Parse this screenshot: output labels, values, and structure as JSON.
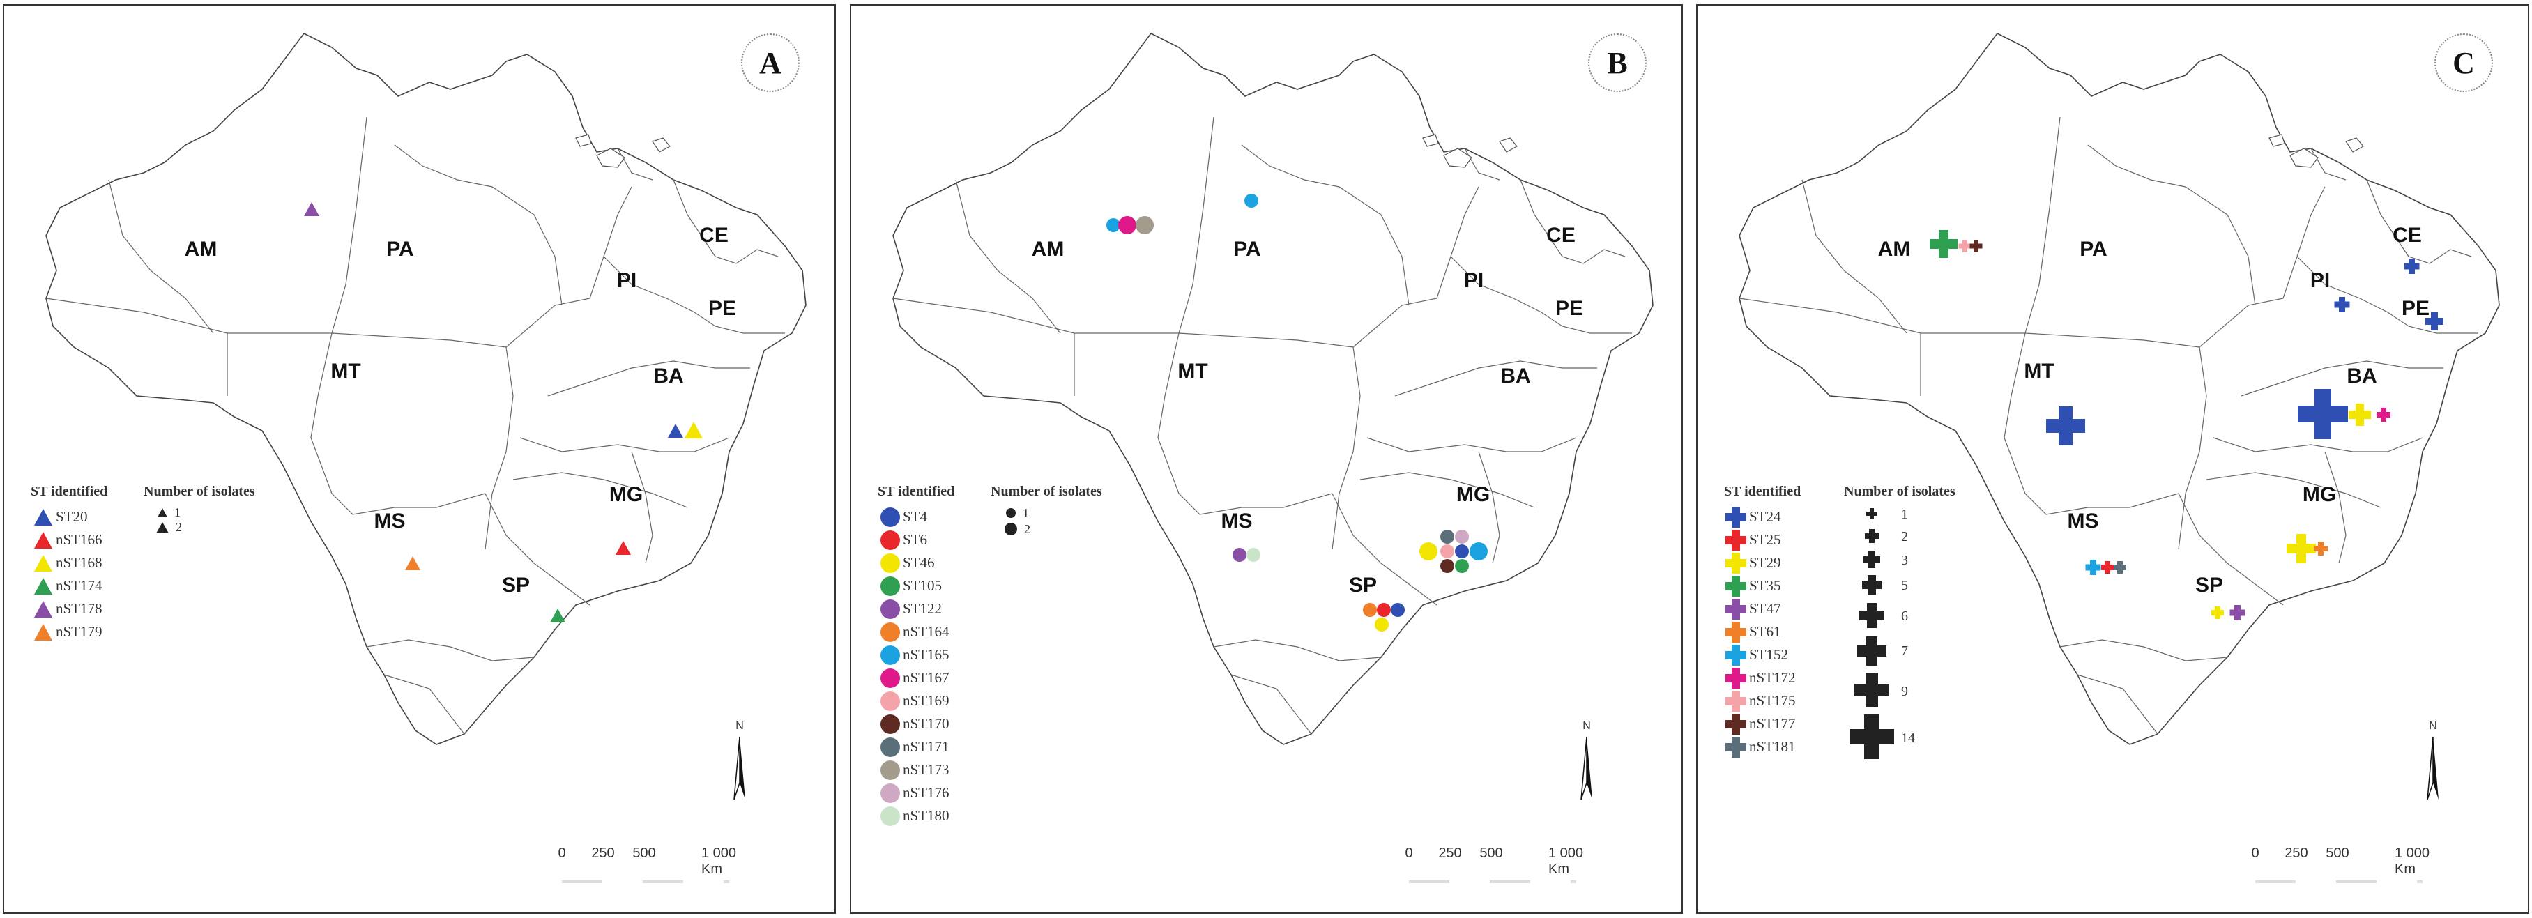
{
  "states": [
    "AM",
    "PA",
    "MT",
    "PI",
    "CE",
    "PE",
    "BA",
    "MG",
    "MS",
    "SP"
  ],
  "scale": {
    "ticks": [
      "0",
      "250",
      "500",
      "1 000 Km"
    ]
  },
  "north_label": "N",
  "panels": [
    {
      "letter": "A",
      "legend_title": "ST identified",
      "size_title": "Number of isolates",
      "size_labels": [
        "1",
        "2"
      ],
      "legend": [
        {
          "label": "ST20",
          "color": "#2f4fb3"
        },
        {
          "label": "nST166",
          "color": "#e8262b"
        },
        {
          "label": "nST168",
          "color": "#f2e600"
        },
        {
          "label": "nST174",
          "color": "#2fa052"
        },
        {
          "label": "nST178",
          "color": "#8b4ea6"
        },
        {
          "label": "nST179",
          "color": "#f07f2a"
        }
      ]
    },
    {
      "letter": "B",
      "legend_title": "ST identified",
      "size_title": "Number of isolates",
      "size_labels": [
        "1",
        "2"
      ],
      "legend": [
        {
          "label": "ST4",
          "color": "#2f4fb3"
        },
        {
          "label": "ST6",
          "color": "#e8262b"
        },
        {
          "label": "ST46",
          "color": "#f2e600"
        },
        {
          "label": "ST105",
          "color": "#2fa052"
        },
        {
          "label": "ST122",
          "color": "#8b4ea6"
        },
        {
          "label": "nST164",
          "color": "#f07f2a"
        },
        {
          "label": "nST165",
          "color": "#1aa3e0"
        },
        {
          "label": "nST167",
          "color": "#e0198b"
        },
        {
          "label": "nST169",
          "color": "#f4a3a8"
        },
        {
          "label": "nST170",
          "color": "#5e2a22"
        },
        {
          "label": "nST171",
          "color": "#5b6f7a"
        },
        {
          "label": "nST173",
          "color": "#a39b8c"
        },
        {
          "label": "nST176",
          "color": "#cfa9c3"
        },
        {
          "label": "nST180",
          "color": "#c9e4c9"
        }
      ]
    },
    {
      "letter": "C",
      "legend_title": "ST identified",
      "size_title": "Number of isolates",
      "size_labels": [
        "1",
        "2",
        "3",
        "5",
        "6",
        "7",
        "9",
        "14"
      ],
      "legend": [
        {
          "label": "ST24",
          "color": "#2f4fb3"
        },
        {
          "label": "ST25",
          "color": "#e8262b"
        },
        {
          "label": "ST29",
          "color": "#f2e600"
        },
        {
          "label": "ST35",
          "color": "#2fa052"
        },
        {
          "label": "ST47",
          "color": "#8b4ea6"
        },
        {
          "label": "ST61",
          "color": "#f07f2a"
        },
        {
          "label": "ST152",
          "color": "#1aa3e0"
        },
        {
          "label": "nST172",
          "color": "#e0198b"
        },
        {
          "label": "nST175",
          "color": "#f4a3a8"
        },
        {
          "label": "nST177",
          "color": "#5e2a22"
        },
        {
          "label": "nST181",
          "color": "#5b6f7a"
        }
      ]
    }
  ]
}
